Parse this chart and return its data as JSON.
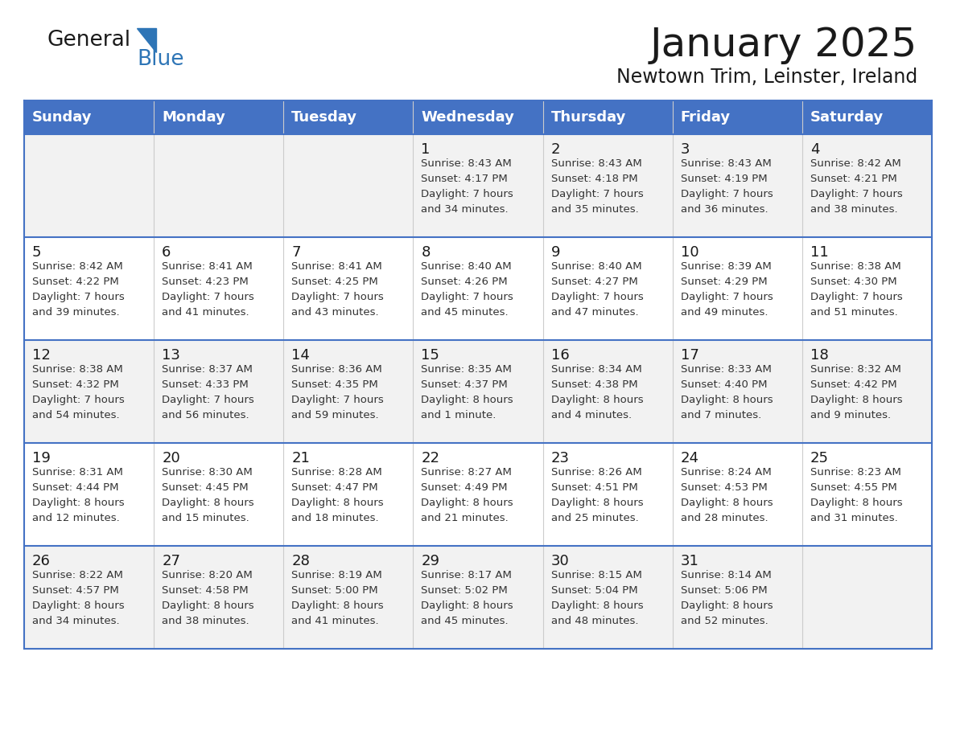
{
  "title": "January 2025",
  "subtitle": "Newtown Trim, Leinster, Ireland",
  "days_of_week": [
    "Sunday",
    "Monday",
    "Tuesday",
    "Wednesday",
    "Thursday",
    "Friday",
    "Saturday"
  ],
  "header_bg": "#4472C4",
  "header_text_color": "#FFFFFF",
  "row_bg_odd": "#F2F2F2",
  "row_bg_even": "#FFFFFF",
  "border_color": "#4472C4",
  "cell_text_color": "#333333",
  "day_num_color": "#1a1a1a",
  "calendar_data": [
    [
      null,
      null,
      null,
      {
        "day": 1,
        "sunrise": "8:43 AM",
        "sunset": "4:17 PM",
        "daylight": "7 hours and 34 minutes"
      },
      {
        "day": 2,
        "sunrise": "8:43 AM",
        "sunset": "4:18 PM",
        "daylight": "7 hours and 35 minutes"
      },
      {
        "day": 3,
        "sunrise": "8:43 AM",
        "sunset": "4:19 PM",
        "daylight": "7 hours and 36 minutes"
      },
      {
        "day": 4,
        "sunrise": "8:42 AM",
        "sunset": "4:21 PM",
        "daylight": "7 hours and 38 minutes"
      }
    ],
    [
      {
        "day": 5,
        "sunrise": "8:42 AM",
        "sunset": "4:22 PM",
        "daylight": "7 hours and 39 minutes"
      },
      {
        "day": 6,
        "sunrise": "8:41 AM",
        "sunset": "4:23 PM",
        "daylight": "7 hours and 41 minutes"
      },
      {
        "day": 7,
        "sunrise": "8:41 AM",
        "sunset": "4:25 PM",
        "daylight": "7 hours and 43 minutes"
      },
      {
        "day": 8,
        "sunrise": "8:40 AM",
        "sunset": "4:26 PM",
        "daylight": "7 hours and 45 minutes"
      },
      {
        "day": 9,
        "sunrise": "8:40 AM",
        "sunset": "4:27 PM",
        "daylight": "7 hours and 47 minutes"
      },
      {
        "day": 10,
        "sunrise": "8:39 AM",
        "sunset": "4:29 PM",
        "daylight": "7 hours and 49 minutes"
      },
      {
        "day": 11,
        "sunrise": "8:38 AM",
        "sunset": "4:30 PM",
        "daylight": "7 hours and 51 minutes"
      }
    ],
    [
      {
        "day": 12,
        "sunrise": "8:38 AM",
        "sunset": "4:32 PM",
        "daylight": "7 hours and 54 minutes"
      },
      {
        "day": 13,
        "sunrise": "8:37 AM",
        "sunset": "4:33 PM",
        "daylight": "7 hours and 56 minutes"
      },
      {
        "day": 14,
        "sunrise": "8:36 AM",
        "sunset": "4:35 PM",
        "daylight": "7 hours and 59 minutes"
      },
      {
        "day": 15,
        "sunrise": "8:35 AM",
        "sunset": "4:37 PM",
        "daylight": "8 hours and 1 minute"
      },
      {
        "day": 16,
        "sunrise": "8:34 AM",
        "sunset": "4:38 PM",
        "daylight": "8 hours and 4 minutes"
      },
      {
        "day": 17,
        "sunrise": "8:33 AM",
        "sunset": "4:40 PM",
        "daylight": "8 hours and 7 minutes"
      },
      {
        "day": 18,
        "sunrise": "8:32 AM",
        "sunset": "4:42 PM",
        "daylight": "8 hours and 9 minutes"
      }
    ],
    [
      {
        "day": 19,
        "sunrise": "8:31 AM",
        "sunset": "4:44 PM",
        "daylight": "8 hours and 12 minutes"
      },
      {
        "day": 20,
        "sunrise": "8:30 AM",
        "sunset": "4:45 PM",
        "daylight": "8 hours and 15 minutes"
      },
      {
        "day": 21,
        "sunrise": "8:28 AM",
        "sunset": "4:47 PM",
        "daylight": "8 hours and 18 minutes"
      },
      {
        "day": 22,
        "sunrise": "8:27 AM",
        "sunset": "4:49 PM",
        "daylight": "8 hours and 21 minutes"
      },
      {
        "day": 23,
        "sunrise": "8:26 AM",
        "sunset": "4:51 PM",
        "daylight": "8 hours and 25 minutes"
      },
      {
        "day": 24,
        "sunrise": "8:24 AM",
        "sunset": "4:53 PM",
        "daylight": "8 hours and 28 minutes"
      },
      {
        "day": 25,
        "sunrise": "8:23 AM",
        "sunset": "4:55 PM",
        "daylight": "8 hours and 31 minutes"
      }
    ],
    [
      {
        "day": 26,
        "sunrise": "8:22 AM",
        "sunset": "4:57 PM",
        "daylight": "8 hours and 34 minutes"
      },
      {
        "day": 27,
        "sunrise": "8:20 AM",
        "sunset": "4:58 PM",
        "daylight": "8 hours and 38 minutes"
      },
      {
        "day": 28,
        "sunrise": "8:19 AM",
        "sunset": "5:00 PM",
        "daylight": "8 hours and 41 minutes"
      },
      {
        "day": 29,
        "sunrise": "8:17 AM",
        "sunset": "5:02 PM",
        "daylight": "8 hours and 45 minutes"
      },
      {
        "day": 30,
        "sunrise": "8:15 AM",
        "sunset": "5:04 PM",
        "daylight": "8 hours and 48 minutes"
      },
      {
        "day": 31,
        "sunrise": "8:14 AM",
        "sunset": "5:06 PM",
        "daylight": "8 hours and 52 minutes"
      },
      null
    ]
  ]
}
